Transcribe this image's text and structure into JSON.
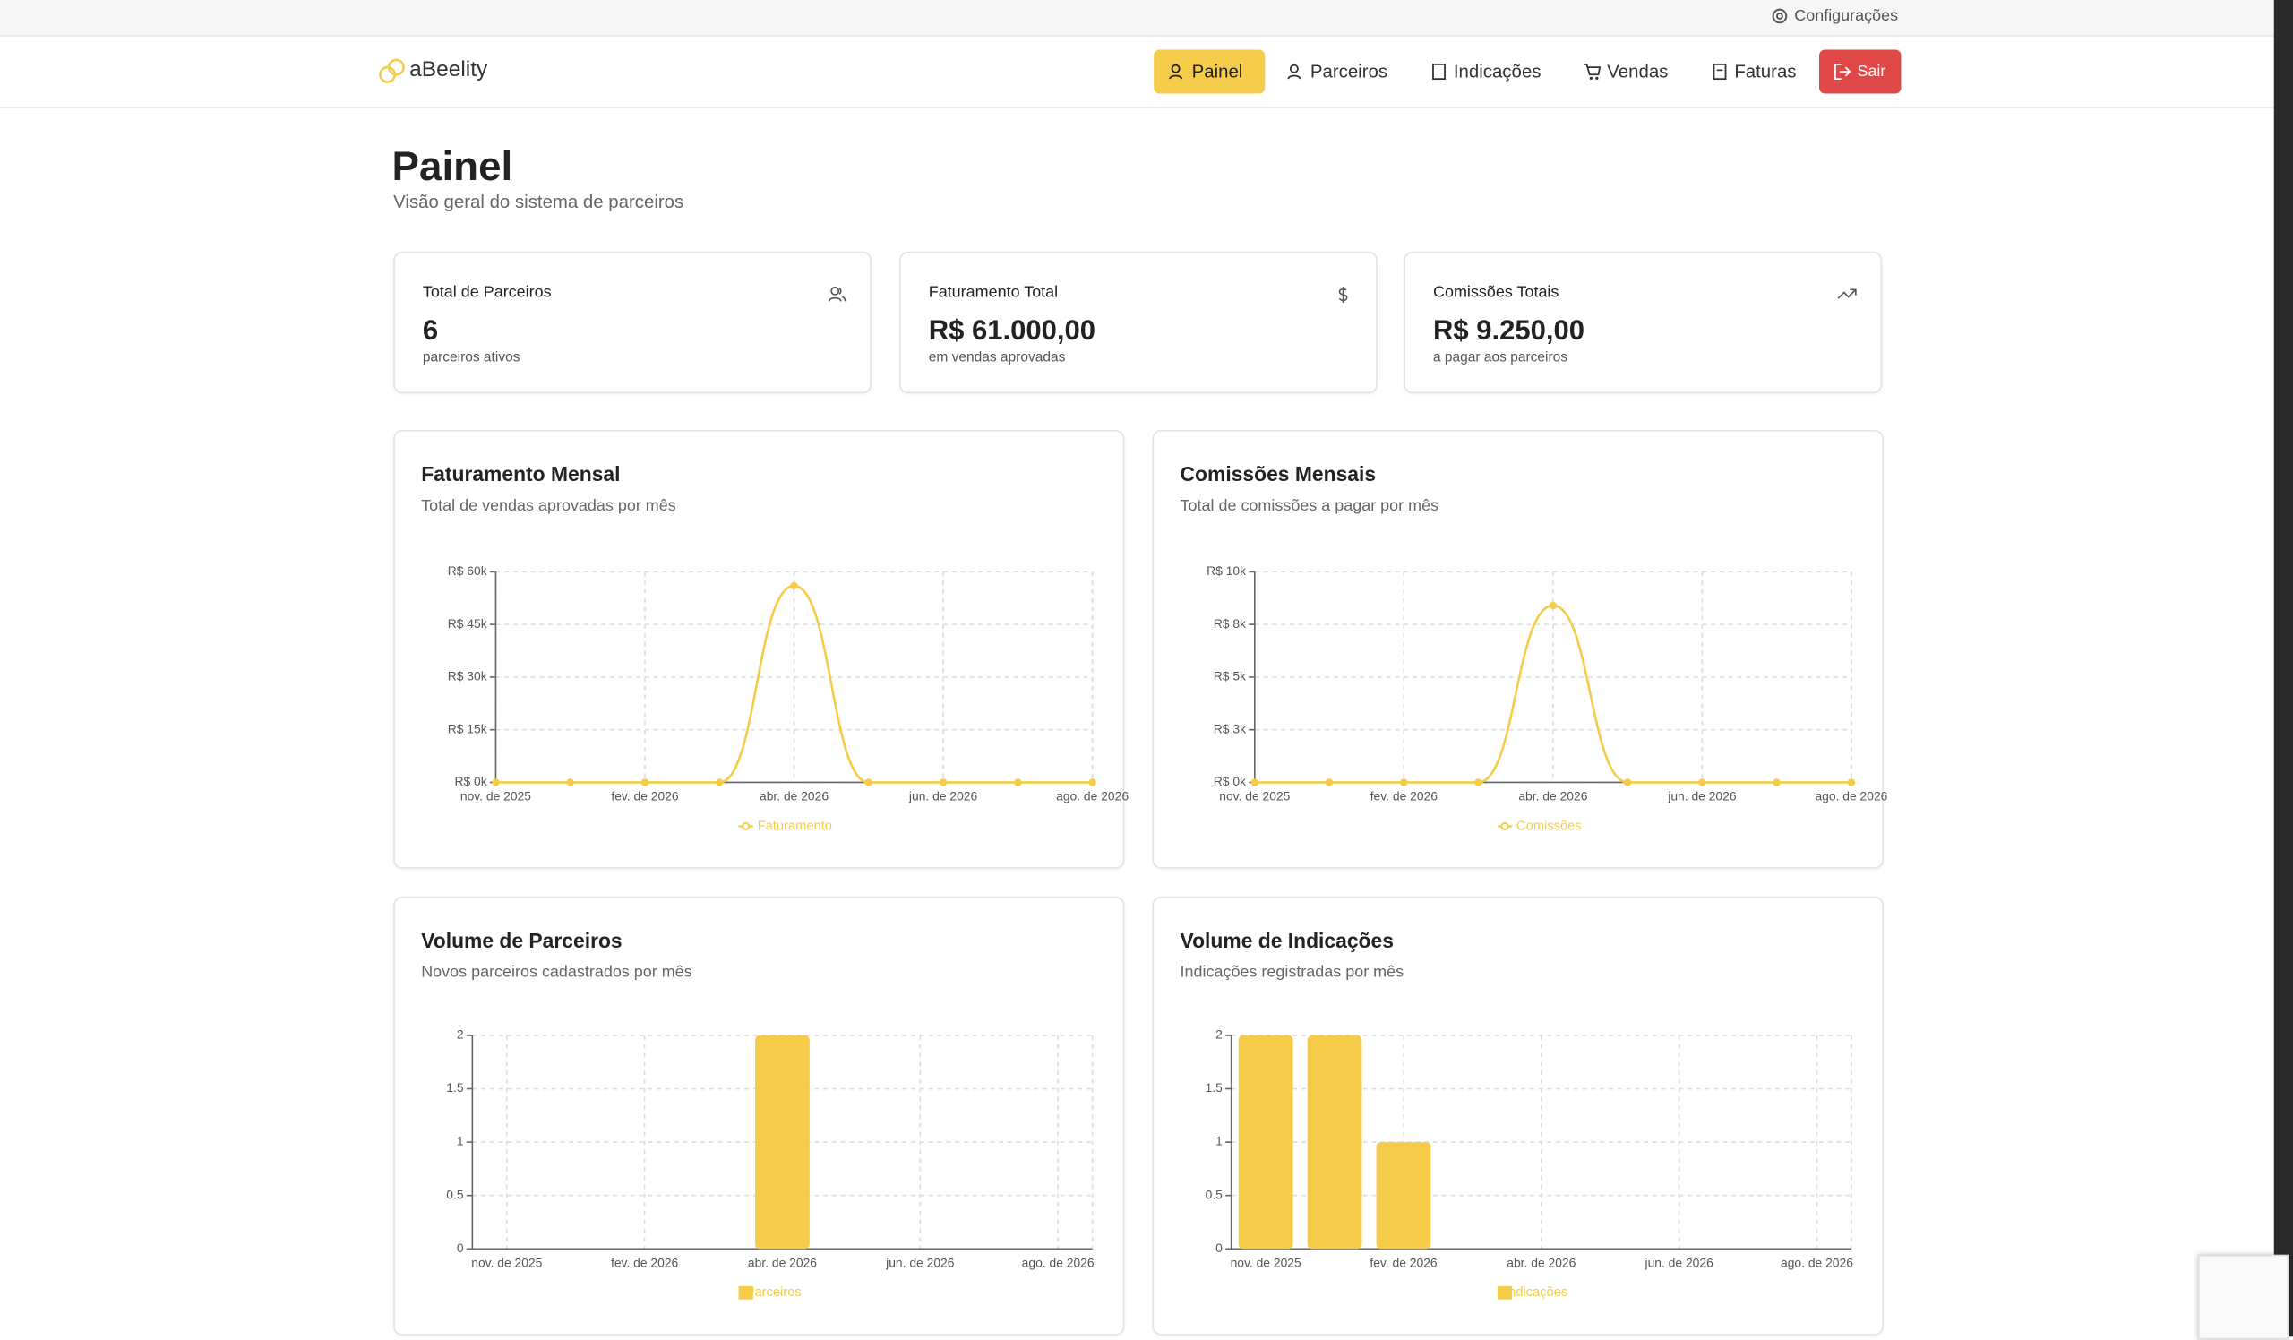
{
  "topbar": {
    "settings": "Configurações"
  },
  "nav": {
    "logo": "aBeelity",
    "items": [
      "Painel",
      "Parceiros",
      "Indicações",
      "Vendas",
      "Faturas"
    ],
    "logout": "Sair"
  },
  "header": {
    "title": "Painel",
    "subtitle": "Visão geral do sistema de parceiros"
  },
  "stats": [
    {
      "label": "Total de Parceiros",
      "value": "6",
      "note": "parceiros ativos"
    },
    {
      "label": "Faturamento Total",
      "value": "R$ 61.000,00",
      "note": "em vendas aprovadas"
    },
    {
      "label": "Comissões Totais",
      "value": "R$ 9.250,00",
      "note": "a pagar aos parceiros"
    }
  ],
  "charts": [
    {
      "type": "line",
      "title": "Faturamento Mensal",
      "subtitle": "Total de vendas aprovadas por mês",
      "categories": [
        "nov. de 2025",
        null,
        "fev. de 2026",
        null,
        "abr. de 2026",
        null,
        "jun. de 2026",
        null,
        "ago. de 2026"
      ],
      "series": [
        {
          "name": "Faturamento",
          "color": "#f5cc4a",
          "values": [
            0,
            0,
            0,
            0,
            56000,
            0,
            0,
            0,
            0
          ]
        }
      ],
      "ylim": [
        0,
        60000
      ],
      "yticks": [
        {
          "value": 0,
          "label": "R$ 0k"
        },
        {
          "value": 15000,
          "label": "R$ 15k"
        },
        {
          "value": 30000,
          "label": "R$ 30k"
        },
        {
          "value": 45000,
          "label": "R$ 45k"
        },
        {
          "value": 60000,
          "label": "R$ 60k"
        }
      ],
      "grid": true
    },
    {
      "type": "line",
      "title": "Comissões Mensais",
      "subtitle": "Total de comissões a pagar por mês",
      "categories": [
        "nov. de 2025",
        null,
        "fev. de 2026",
        null,
        "abr. de 2026",
        null,
        "jun. de 2026",
        null,
        "ago. de 2026"
      ],
      "series": [
        {
          "name": "Comissões",
          "color": "#f5cc4a",
          "values": [
            0,
            0,
            0,
            0,
            8400,
            0,
            0,
            0,
            0
          ]
        }
      ],
      "ylim": [
        0,
        10000
      ],
      "yticks": [
        {
          "value": 0,
          "label": "R$ 0k"
        },
        {
          "value": 2500,
          "label": "R$ 3k"
        },
        {
          "value": 5000,
          "label": "R$ 5k"
        },
        {
          "value": 7500,
          "label": "R$ 8k"
        },
        {
          "value": 10000,
          "label": "R$ 10k"
        }
      ],
      "grid": true
    },
    {
      "type": "bar",
      "title": "Volume de Parceiros",
      "subtitle": "Novos parceiros cadastrados por mês",
      "categories": [
        "nov. de 2025",
        null,
        "fev. de 2026",
        null,
        "abr. de 2026",
        null,
        "jun. de 2026",
        null,
        "ago. de 2026"
      ],
      "series": [
        {
          "name": "Parceiros",
          "color": "#f5cc4a",
          "values": [
            0,
            0,
            0,
            0,
            2,
            0,
            0,
            0,
            0
          ]
        }
      ],
      "ylim": [
        0,
        2
      ],
      "yticks": [
        0,
        0.5,
        1,
        1.5,
        2
      ],
      "grid": true
    },
    {
      "type": "bar",
      "title": "Volume de Indicações",
      "subtitle": "Indicações registradas por mês",
      "categories": [
        "nov. de 2025",
        null,
        "fev. de 2026",
        null,
        "abr. de 2026",
        null,
        "jun. de 2026",
        null,
        "ago. de 2026"
      ],
      "series": [
        {
          "name": "Indicações",
          "color": "#f5cc4a",
          "values": [
            2,
            2,
            1,
            0,
            0,
            0,
            0,
            0,
            0
          ]
        }
      ],
      "ylim": [
        0,
        2
      ],
      "yticks": [
        0,
        0.5,
        1,
        1.5,
        2
      ],
      "grid": true
    }
  ]
}
